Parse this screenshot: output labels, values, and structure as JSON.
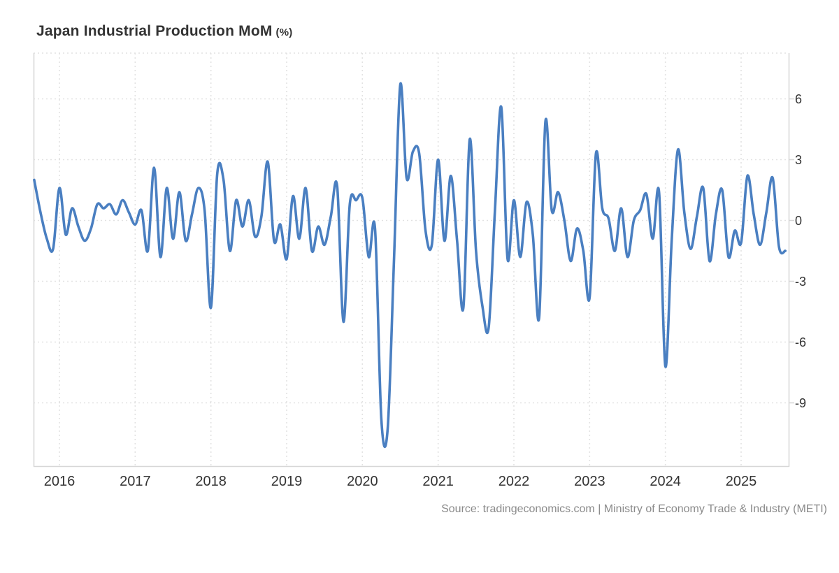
{
  "header": {
    "title": "Japan Industrial Production MoM",
    "title_suffix": "(%)"
  },
  "footer": {
    "source": "Source: tradingeconomics.com | Ministry of Economy Trade & Industry (METI)"
  },
  "chart_data": {
    "type": "line",
    "title": "Japan Industrial Production MoM (%)",
    "unit": "percent",
    "frequency": "monthly",
    "start_month": "2015-09",
    "end_month": "2025-08",
    "values": [
      2.0,
      0.4,
      -0.9,
      -1.4,
      1.6,
      -0.7,
      0.6,
      -0.3,
      -1.0,
      -0.4,
      0.8,
      0.6,
      0.8,
      0.3,
      1.0,
      0.4,
      -0.2,
      0.5,
      -1.5,
      2.6,
      -1.8,
      1.6,
      -0.9,
      1.4,
      -1.0,
      0.3,
      1.6,
      0.5,
      -4.3,
      2.3,
      2.0,
      -1.5,
      1.0,
      -0.3,
      1.0,
      -0.8,
      0.2,
      2.9,
      -1.0,
      -0.2,
      -1.9,
      1.2,
      -0.9,
      1.6,
      -1.5,
      -0.3,
      -1.2,
      0.2,
      1.7,
      -5.0,
      0.8,
      1.0,
      1.1,
      -1.8,
      -0.4,
      -9.8,
      -10.3,
      -2.0,
      6.7,
      2.1,
      3.4,
      3.3,
      -0.5,
      -1.2,
      3.0,
      -1.0,
      2.2,
      -1.0,
      -4.3,
      4.0,
      -1.5,
      -4.2,
      -5.3,
      0.5,
      5.6,
      -1.9,
      1.0,
      -1.8,
      0.9,
      -0.7,
      -4.8,
      4.9,
      0.5,
      1.4,
      0.0,
      -2.0,
      -0.4,
      -1.5,
      -3.8,
      3.3,
      0.6,
      0.1,
      -1.5,
      0.6,
      -1.8,
      0.0,
      0.5,
      1.3,
      -0.9,
      1.4,
      -7.2,
      -1.0,
      3.5,
      0.4,
      -1.4,
      0.2,
      1.6,
      -2.0,
      0.3,
      1.5,
      -1.8,
      -0.5,
      -1.1,
      2.2,
      0.3,
      -1.2,
      0.4,
      2.1,
      -1.3,
      -1.5
    ],
    "x_tick_labels": [
      "2016",
      "2017",
      "2018",
      "2019",
      "2020",
      "2021",
      "2022",
      "2023",
      "2024",
      "2025"
    ],
    "y_ticks": [
      6,
      3,
      0,
      -3,
      -6,
      -9
    ],
    "ylim": [
      -12.2,
      8.3
    ],
    "grid": "dotted",
    "legend": "none",
    "colors": {
      "line": "#4a7fc1",
      "grid": "#e2e2e2",
      "axis": "#d6d6d6",
      "text": "#333333",
      "source_text": "#8a8a8a",
      "background": "#ffffff"
    }
  }
}
